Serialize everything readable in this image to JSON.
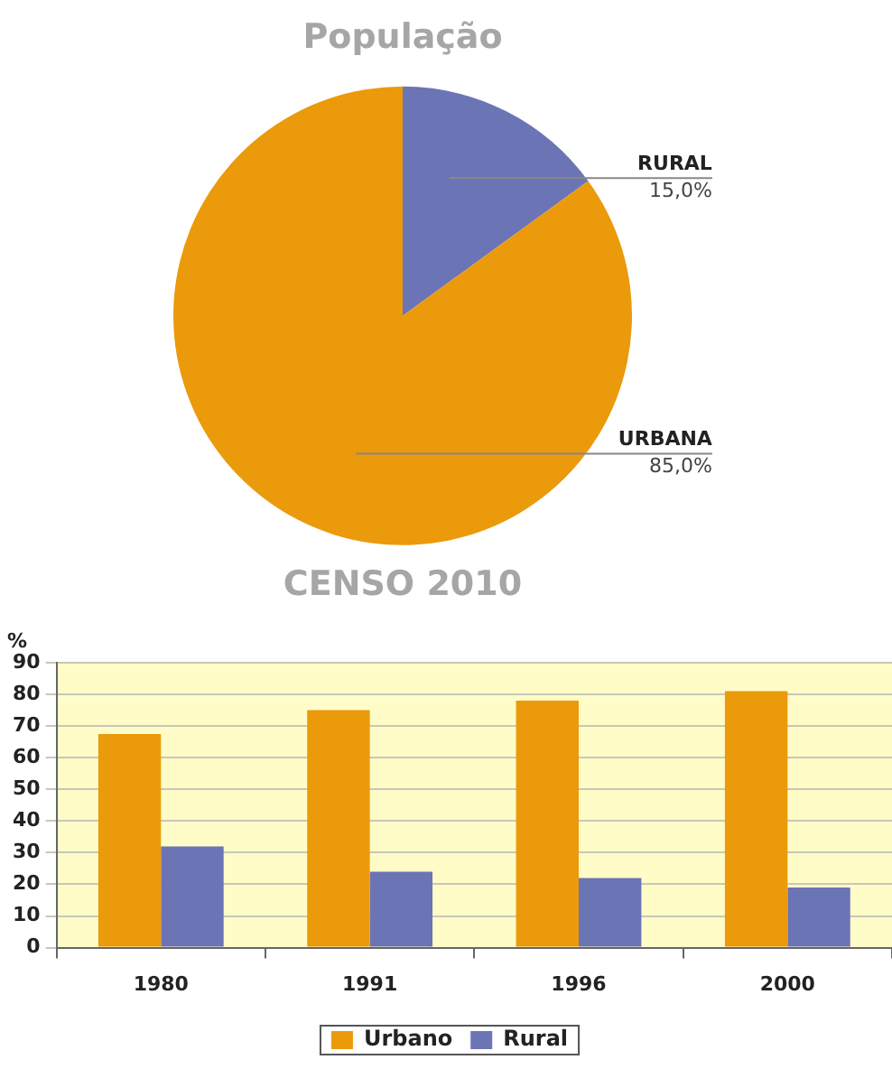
{
  "chart_data": [
    {
      "type": "pie",
      "title": "População",
      "annotations": [
        "CENSO 2010"
      ],
      "categories": [
        "RURAL",
        "URBANA"
      ],
      "values": [
        15,
        85
      ],
      "value_labels": [
        "15,0%",
        "85,0%"
      ],
      "colors": [
        "#6b74b5",
        "#eb9a0c"
      ],
      "legend": false
    },
    {
      "type": "bar",
      "ylabel": "%",
      "categories": [
        "1980",
        "1991",
        "1996",
        "2000"
      ],
      "series": [
        {
          "name": "Urbano",
          "color": "#eb9a0c",
          "values": [
            67.5,
            75,
            78,
            81
          ]
        },
        {
          "name": "Rural",
          "color": "#6b74b5",
          "values": [
            32,
            24,
            22,
            19
          ]
        }
      ],
      "ylim": [
        0,
        90
      ],
      "yticks": [
        0,
        10,
        20,
        30,
        40,
        50,
        60,
        70,
        80,
        90
      ],
      "grid": "y",
      "legend": "bottom"
    }
  ]
}
